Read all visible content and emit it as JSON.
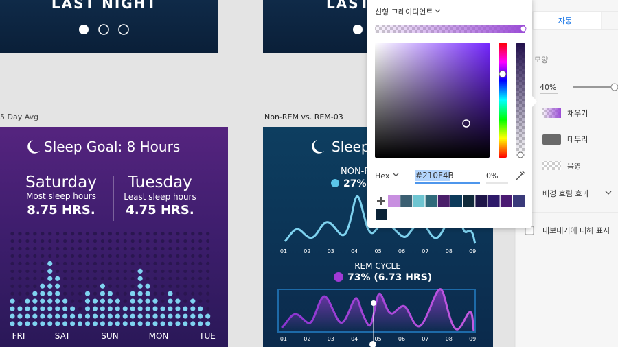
{
  "top_artboards": {
    "left_title": "LAST NIGHT",
    "middle_title": "LAST"
  },
  "artboard_labels": [
    "5 Day Avg",
    "Non-REM vs. REM-03"
  ],
  "left_card": {
    "title": "Sleep Goal: 8 Hours",
    "most": {
      "day": "Saturday",
      "caption": "Most sleep hours",
      "value": "8.75 HRS."
    },
    "least": {
      "day": "Tuesday",
      "caption": "Least sleep hours",
      "value": "4.75 HRS."
    },
    "days": [
      "FRI",
      "SAT",
      "SUN",
      "MON",
      "TUE"
    ],
    "levels": [
      4,
      3,
      4,
      5,
      6,
      9,
      7,
      4,
      3,
      2,
      5,
      4,
      6,
      5,
      4,
      3,
      5,
      8,
      6,
      4,
      3,
      5,
      4,
      3,
      4,
      3,
      2
    ]
  },
  "middle_card": {
    "title": "Sleep",
    "nonrem_label": "NON-R",
    "nonrem_value": "27%",
    "axis": [
      "01",
      "02",
      "03",
      "04",
      "05",
      "06",
      "07",
      "08",
      "09"
    ],
    "rem_label": "REM CYCLE",
    "rem_value": "73% (6.73 HRS)"
  },
  "color_picker": {
    "mode": "선형 그레이디언트",
    "format": "Hex",
    "hex": "#210F4B",
    "alpha": "0%"
  },
  "panel": {
    "tab": "자동",
    "section": "모양",
    "opacity": "40%",
    "fill": "채우기",
    "border": "테두리",
    "shadow": "음영",
    "blur": "배경 흐림 효과",
    "export": "내보내기에 대해 표시"
  }
}
